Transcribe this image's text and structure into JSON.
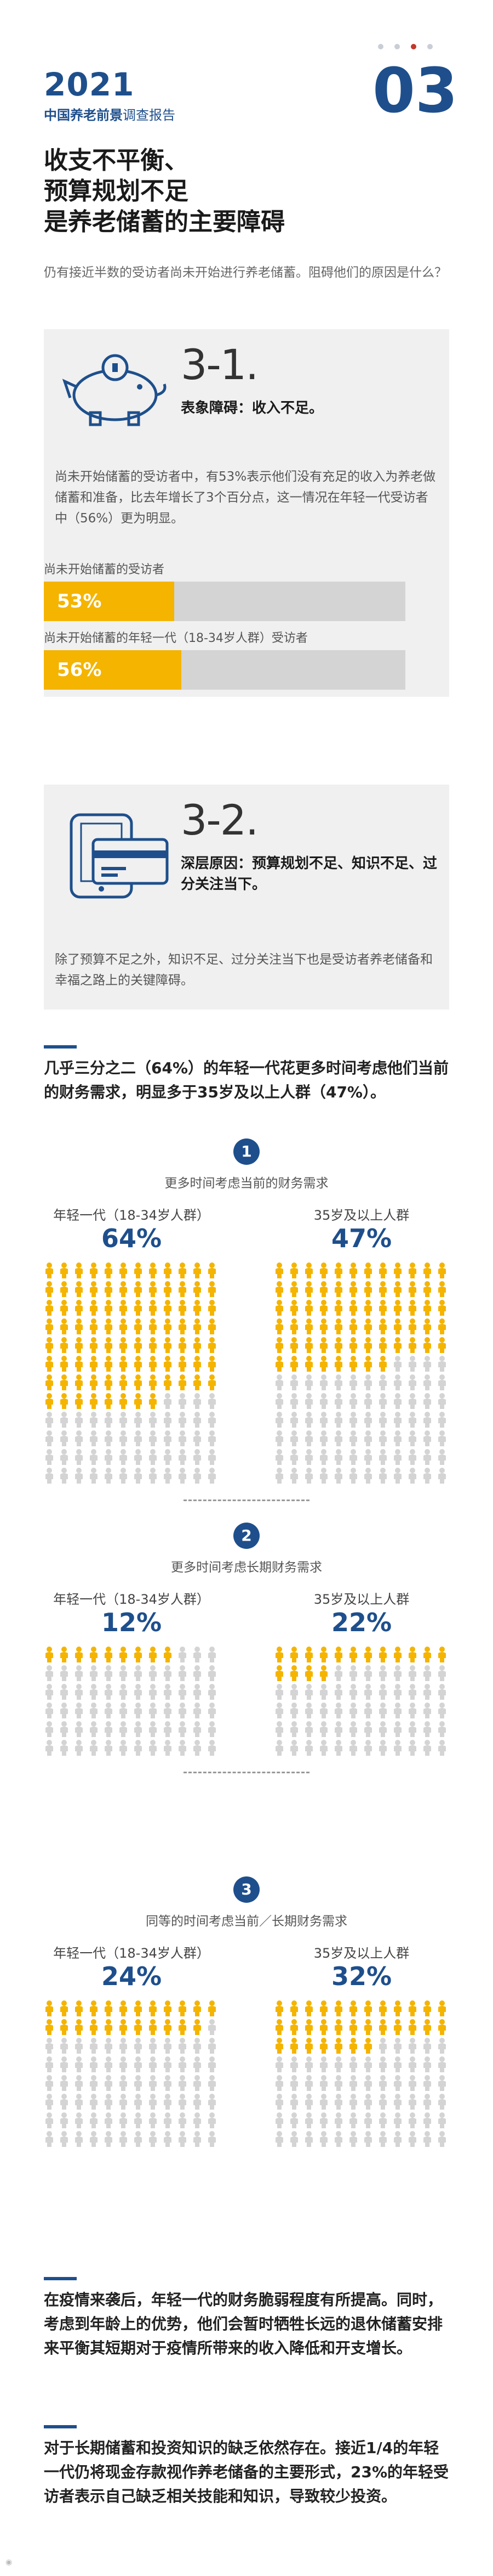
{
  "header": {
    "year": "2021",
    "subtitle_bold": "中国养老前景",
    "subtitle_rest": "调查报告",
    "chapter_number": "03",
    "colors": {
      "brand": "#1e4f8c",
      "accent": "#f4b400",
      "active_dot": "#c0392b"
    }
  },
  "headline": {
    "line1": "收支不平衡、",
    "line2": "预算规划不足",
    "line3": "是养老储蓄的主要障碍"
  },
  "intro": "仍有接近半数的受访者尚未开始进行养老储蓄。阻碍他们的原因是什么？",
  "section1": {
    "number": "3-1.",
    "title": "表象障碍：收入不足。",
    "icon": "piggy-bank-icon",
    "body": "尚未开始储蓄的受访者中，有53%表示他们没有充足的收入为养老做储蓄和准备，比去年增长了3个百分点，这一情况在年轻一代受访者中（56%）更为明显。",
    "bars": [
      {
        "label": "尚未开始储蓄的受访者",
        "value": 53,
        "value_label": "53%"
      },
      {
        "label": "尚未开始储蓄的年轻一代（18-34岁人群）受访者",
        "value": 56,
        "value_label": "56%"
      }
    ]
  },
  "section2": {
    "number": "3-2.",
    "title": "深层原因：预算规划不足、知识不足、过分关注当下。",
    "icon": "phone-card-icon",
    "body": "除了预算不足之外，知识不足、过分关注当下也是受访者养老储备和幸福之路上的关键障碍。"
  },
  "para1": "几乎三分之二（64%）的年轻一代花更多时间考虑他们当前的财务需求，明显多于35岁及以上人群（47%）。",
  "comparisons": [
    {
      "num": "1",
      "title": "更多时间考虑当前的财务需求",
      "groups": [
        {
          "label": "年轻一代（18-34岁人群）",
          "value": 64,
          "pct": "64%"
        },
        {
          "label": "35岁及以上人群",
          "value": 47,
          "pct": "47%"
        }
      ]
    },
    {
      "num": "2",
      "title": "更多时间考虑长期财务需求",
      "groups": [
        {
          "label": "年轻一代（18-34岁人群）",
          "value": 12,
          "pct": "12%"
        },
        {
          "label": "35岁及以上人群",
          "value": 22,
          "pct": "22%"
        }
      ]
    },
    {
      "num": "3",
      "title": "同等的时间考虑当前／长期财务需求",
      "groups": [
        {
          "label": "年轻一代（18-34岁人群）",
          "value": 24,
          "pct": "24%"
        },
        {
          "label": "35岁及以上人群",
          "value": 32,
          "pct": "32%"
        }
      ]
    }
  ],
  "para2": "在疫情来袭后，年轻一代的财务脆弱程度有所提高。同时，考虑到年龄上的优势，他们会暂时牺牲长远的退休储蓄安排来平衡其短期对于疫情所带来的收入降低和开支增长。",
  "para3": "对于长期储蓄和投资知识的缺乏依然存在。接近1/4的年轻一代仍将现金存款视作养老储备的主要形式，23%的年轻受访者表示自己缺乏相关技能和知识，导致较少投资。",
  "icons": {
    "person": "person-icon"
  }
}
